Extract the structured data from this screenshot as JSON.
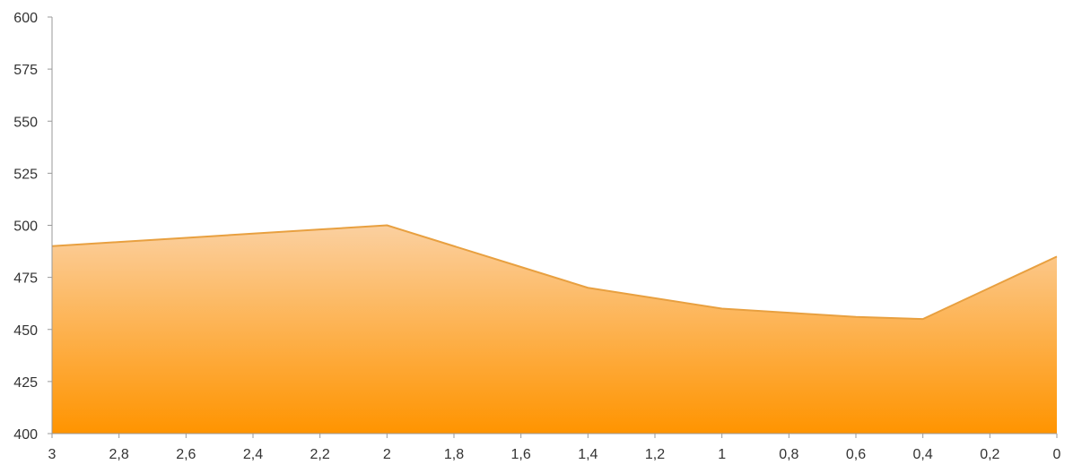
{
  "chart_data": {
    "type": "area",
    "title": "",
    "xlabel": "",
    "ylabel": "",
    "x": [
      3,
      2.8,
      2.6,
      2.4,
      2.2,
      2,
      1.8,
      1.6,
      1.4,
      1.2,
      1,
      0.8,
      0.6,
      0.4,
      0.2,
      0
    ],
    "x_tick_labels": [
      "3",
      "2,8",
      "2,6",
      "2,4",
      "2,2",
      "2",
      "1,8",
      "1,6",
      "1,4",
      "1,2",
      "1",
      "0,8",
      "0,6",
      "0,4",
      "0,2",
      "0"
    ],
    "y_ticks": [
      400,
      425,
      450,
      475,
      500,
      525,
      550,
      575,
      600
    ],
    "ylim": [
      400,
      600
    ],
    "xlim": [
      3,
      0
    ],
    "x_reversed": true,
    "grid": false,
    "legend": "none",
    "series": [
      {
        "values": [
          490,
          492,
          494,
          496,
          498,
          500,
          490,
          480,
          470,
          465,
          460,
          458,
          456,
          455,
          470,
          485
        ]
      }
    ],
    "colors": {
      "fill_top": "#fbd0a0",
      "fill_bottom": "#ff9400",
      "line": "#e8a040",
      "axis": "#999999",
      "text": "#333333"
    }
  }
}
